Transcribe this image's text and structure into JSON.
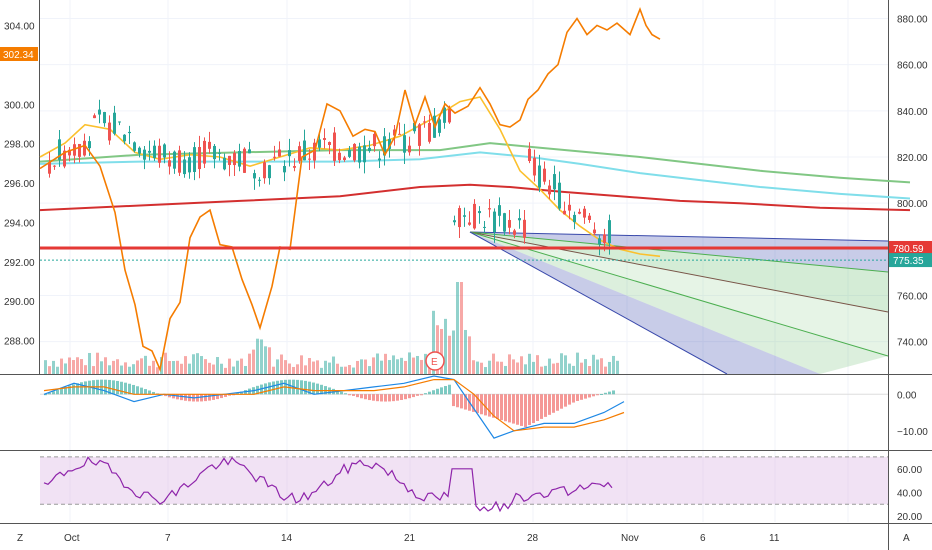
{
  "chart_data": {
    "type": "line",
    "x_tick_labels": [
      "Oct",
      "7",
      "14",
      "21",
      "28",
      "Nov",
      "6",
      "11"
    ],
    "left_axis": {
      "ticks": [
        "304.00",
        "300.00",
        "298.00",
        "296.00",
        "294.00",
        "292.00",
        "290.00",
        "288.00"
      ],
      "ylim": [
        286.3,
        305.3
      ],
      "last_price_label": "302.34",
      "last_price_color": "#f57c00"
    },
    "right_axis": {
      "ticks": [
        "880.00",
        "860.00",
        "840.00",
        "820.00",
        "800.00",
        "780.00",
        "760.00",
        "740.00"
      ],
      "ylim": [
        726,
        888
      ],
      "labels": [
        {
          "text": "780.59",
          "value": 780.59,
          "color": "#e53935"
        },
        {
          "text": "775.35",
          "value": 775.35,
          "color": "#26a69a"
        }
      ]
    },
    "horizontal_levels": [
      {
        "value": 780.59,
        "color": "#e53935"
      },
      {
        "value": 775.35,
        "color": "#26a69a",
        "style": "dotted"
      }
    ],
    "moving_averages": [
      {
        "color": "#81c784",
        "values": [
          [
            0,
            818
          ],
          [
            100,
            821
          ],
          [
            200,
            822
          ],
          [
            300,
            823
          ],
          [
            400,
            823
          ],
          [
            450,
            826
          ],
          [
            500,
            824
          ],
          [
            550,
            822
          ],
          [
            600,
            820
          ],
          [
            660,
            817
          ],
          [
            720,
            814
          ],
          [
            800,
            811
          ],
          [
            870,
            809
          ]
        ]
      },
      {
        "color": "#80deea",
        "values": [
          [
            0,
            817
          ],
          [
            100,
            818
          ],
          [
            200,
            818
          ],
          [
            300,
            818
          ],
          [
            380,
            819
          ],
          [
            440,
            822
          ],
          [
            490,
            820
          ],
          [
            540,
            817
          ],
          [
            600,
            813
          ],
          [
            660,
            810
          ],
          [
            720,
            807
          ],
          [
            800,
            804
          ],
          [
            870,
            802
          ]
        ]
      },
      {
        "color": "#d32f2f",
        "values": [
          [
            0,
            797
          ],
          [
            100,
            799
          ],
          [
            200,
            801
          ],
          [
            300,
            803
          ],
          [
            380,
            807
          ],
          [
            430,
            808
          ],
          [
            470,
            807
          ],
          [
            520,
            805
          ],
          [
            580,
            803
          ],
          [
            640,
            801
          ],
          [
            700,
            800
          ],
          [
            780,
            798
          ],
          [
            870,
            797
          ]
        ]
      }
    ],
    "fast_average": {
      "color": "#fbc02d",
      "values": [
        [
          0,
          820
        ],
        [
          25,
          826
        ],
        [
          45,
          834
        ],
        [
          70,
          832
        ],
        [
          95,
          822
        ],
        [
          120,
          819
        ],
        [
          150,
          821
        ],
        [
          180,
          820
        ],
        [
          210,
          816
        ],
        [
          240,
          820
        ],
        [
          270,
          824
        ],
        [
          300,
          823
        ],
        [
          330,
          825
        ],
        [
          360,
          829
        ],
        [
          390,
          836
        ],
        [
          420,
          844
        ],
        [
          440,
          846
        ],
        [
          460,
          832
        ],
        [
          480,
          814
        ],
        [
          500,
          806
        ],
        [
          520,
          797
        ],
        [
          540,
          790
        ],
        [
          560,
          784
        ],
        [
          580,
          780
        ],
        [
          600,
          778
        ],
        [
          620,
          777
        ]
      ]
    },
    "orange_series": {
      "color": "#f57c00",
      "values": [
        [
          0,
          815
        ],
        [
          25,
          822
        ],
        [
          45,
          825
        ],
        [
          60,
          816
        ],
        [
          75,
          796
        ],
        [
          85,
          771
        ],
        [
          95,
          756
        ],
        [
          103,
          738
        ],
        [
          112,
          736
        ],
        [
          120,
          728
        ],
        [
          130,
          750
        ],
        [
          140,
          757
        ],
        [
          150,
          785
        ],
        [
          160,
          794
        ],
        [
          170,
          797
        ],
        [
          180,
          782
        ],
        [
          192,
          781
        ],
        [
          202,
          767
        ],
        [
          212,
          756
        ],
        [
          220,
          746
        ],
        [
          232,
          764
        ],
        [
          240,
          781
        ],
        [
          250,
          780
        ],
        [
          262,
          820
        ],
        [
          275,
          823
        ],
        [
          287,
          843
        ],
        [
          300,
          840
        ],
        [
          313,
          829
        ],
        [
          325,
          832
        ],
        [
          335,
          831
        ],
        [
          345,
          821
        ],
        [
          355,
          829
        ],
        [
          365,
          849
        ],
        [
          375,
          834
        ],
        [
          385,
          846
        ],
        [
          395,
          833
        ],
        [
          405,
          843
        ],
        [
          415,
          839
        ],
        [
          428,
          842
        ],
        [
          440,
          850
        ],
        [
          450,
          843
        ],
        [
          460,
          834
        ],
        [
          470,
          833
        ],
        [
          480,
          836
        ],
        [
          488,
          845
        ],
        [
          498,
          849
        ],
        [
          508,
          856
        ],
        [
          518,
          860
        ],
        [
          527,
          874
        ],
        [
          537,
          880
        ],
        [
          547,
          873
        ],
        [
          557,
          877
        ],
        [
          567,
          875
        ],
        [
          577,
          878
        ],
        [
          590,
          873
        ],
        [
          600,
          884
        ],
        [
          606,
          877
        ],
        [
          612,
          873
        ],
        [
          620,
          871
        ]
      ]
    },
    "candles_summary": "daily candlesticks with volume bars, Oct through end of October",
    "macd": {
      "ticks": [
        "0.00",
        "−10.00"
      ],
      "ylim": [
        -15,
        5
      ],
      "macd_line_color": "#1e88e5",
      "signal_line_color": "#f57c00"
    },
    "rsi": {
      "ticks": [
        "60.00",
        "40.00",
        "20.00"
      ],
      "ylim": [
        15,
        75
      ],
      "upper_band": 70,
      "lower_band": 30,
      "color": "#8e24aa"
    },
    "earnings_marker": "E",
    "fan_colors": [
      "#3949ab",
      "#4caf50",
      "#795548"
    ]
  },
  "ui": {
    "corner_left_label": "Z",
    "corner_right_label": "A"
  }
}
